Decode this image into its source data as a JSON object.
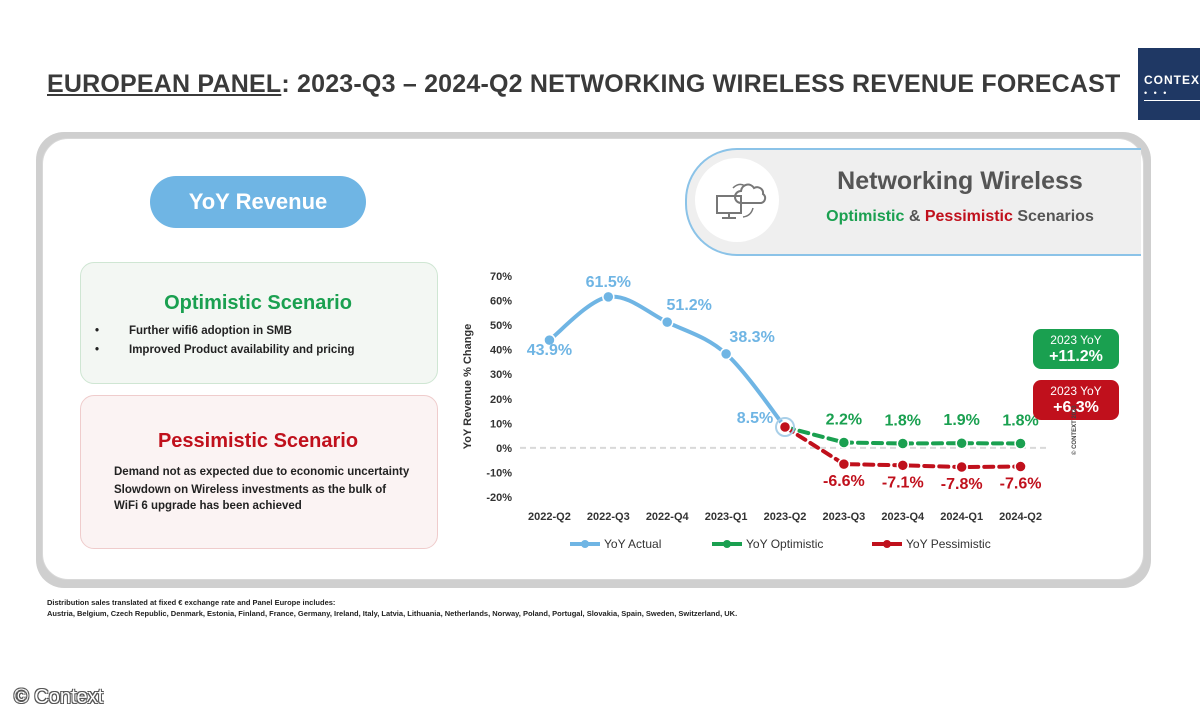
{
  "header": {
    "title_underlined": "EUROPEAN PANEL",
    "title_rest": ": 2023-Q3 – 2024-Q2 NETWORKING WIRELESS REVENUE FORECAST",
    "logo_text": "CONTEXT"
  },
  "yoy_pill": "YoY Revenue",
  "product_header": {
    "title": "Networking Wireless",
    "sub_optimistic": "Optimistic",
    "sub_amp": " & ",
    "sub_pessimistic": "Pessimistic",
    "sub_rest": " Scenarios"
  },
  "optimistic": {
    "title": "Optimistic Scenario",
    "bullets": [
      "Further wifi6 adoption in SMB",
      "Improved Product availability and pricing"
    ]
  },
  "pessimistic": {
    "title": "Pessimistic Scenario",
    "bullets": [
      "Demand not as expected due to economic uncertainty",
      "Slowdown on Wireless investments as the bulk of",
      "WiFi 6 upgrade has been achieved"
    ]
  },
  "summary_boxes": {
    "optimistic": {
      "label": "2023 YoY",
      "value": "+11.2%"
    },
    "pessimistic": {
      "label": "2023 YoY",
      "value": "+6.3%"
    }
  },
  "chart_copyright": "© CONTEXT 2023",
  "footer": {
    "line1": "Distribution sales translated at fixed € exchange rate and Panel Europe includes:",
    "line2": "Austria, Belgium, Czech Republic, Denmark, Estonia, Finland, France, Germany, Ireland, Italy, Latvia, Lithuania, Netherlands, Norway, Poland, Portugal, Slovakia, Spain, Sweden, Switzerland, UK."
  },
  "watermark": "© Context",
  "colors": {
    "actual": "#6fb5e4",
    "optimistic": "#1aa050",
    "pessimistic": "#c0101c",
    "brand": "#1f3864"
  },
  "chart_data": {
    "type": "line",
    "categories": [
      "2022-Q2",
      "2022-Q3",
      "2022-Q4",
      "2023-Q1",
      "2023-Q2",
      "2023-Q3",
      "2023-Q4",
      "2024-Q1",
      "2024-Q2"
    ],
    "ylabel": "YoY Revenue % Change",
    "ylim": [
      -20,
      70
    ],
    "yticks": [
      -20,
      -10,
      0,
      10,
      20,
      30,
      40,
      50,
      60,
      70
    ],
    "ytick_labels": [
      "-20%",
      "-10%",
      "0%",
      "10%",
      "20%",
      "30%",
      "40%",
      "50%",
      "60%",
      "70%"
    ],
    "legend_position": "bottom",
    "series": [
      {
        "name": "YoY Actual",
        "color": "#6fb5e4",
        "style": "solid",
        "values": [
          43.9,
          61.5,
          51.2,
          38.3,
          8.5,
          null,
          null,
          null,
          null
        ],
        "labels": [
          "43.9%",
          "61.5%",
          "51.2%",
          "38.3%",
          "8.5%",
          "",
          "",
          "",
          ""
        ]
      },
      {
        "name": "YoY Optimistic",
        "color": "#1aa050",
        "style": "dashed",
        "values": [
          null,
          null,
          null,
          null,
          8.5,
          2.2,
          1.8,
          1.9,
          1.8
        ],
        "labels": [
          "",
          "",
          "",
          "",
          "",
          "2.2%",
          "1.8%",
          "1.9%",
          "1.8%"
        ]
      },
      {
        "name": "YoY Pessimistic",
        "color": "#c0101c",
        "style": "dashed",
        "values": [
          null,
          null,
          null,
          null,
          8.5,
          -6.6,
          -7.1,
          -7.8,
          -7.6
        ],
        "labels": [
          "",
          "",
          "",
          "",
          "",
          "-6.6%",
          "-7.1%",
          "-7.8%",
          "-7.6%"
        ]
      }
    ]
  }
}
